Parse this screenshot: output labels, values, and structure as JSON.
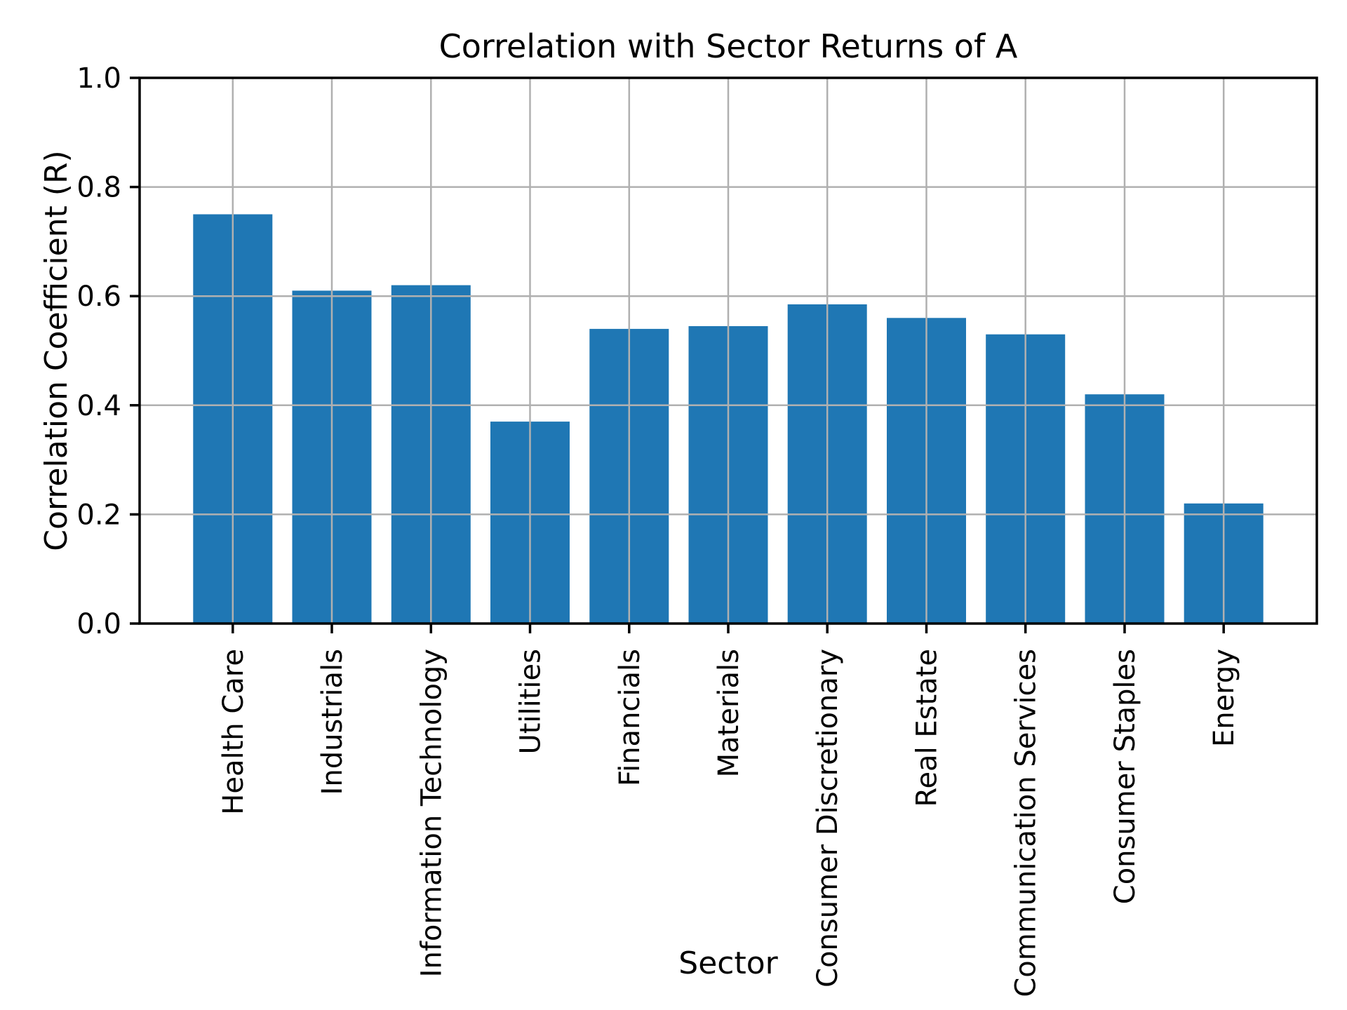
{
  "figure": {
    "background": "#ffffff"
  },
  "style": {
    "bar_color": "#1f77b4",
    "grid_color": "#b0b0b0",
    "spine_color": "#000000",
    "text_color": "#000000"
  },
  "chart_data": {
    "type": "bar",
    "title": "Correlation with Sector Returns of A",
    "xlabel": "Sector",
    "ylabel": "Correlation Coefficient (R)",
    "categories": [
      "Health Care",
      "Industrials",
      "Information Technology",
      "Utilities",
      "Financials",
      "Materials",
      "Consumer Discretionary",
      "Real Estate",
      "Communication Services",
      "Consumer Staples",
      "Energy"
    ],
    "values": [
      0.75,
      0.61,
      0.62,
      0.37,
      0.54,
      0.545,
      0.585,
      0.56,
      0.53,
      0.42,
      0.22
    ],
    "ylim": [
      0.0,
      1.0
    ],
    "yticks": [
      0.0,
      0.2,
      0.4,
      0.6,
      0.8,
      1.0
    ],
    "ytick_labels": [
      "0.0",
      "0.2",
      "0.4",
      "0.6",
      "0.8",
      "1.0"
    ],
    "grid": true,
    "grid_above_bars": true,
    "legend_position": "none",
    "bar_color": "#1f77b4",
    "xtick_rotation_deg": 90
  }
}
